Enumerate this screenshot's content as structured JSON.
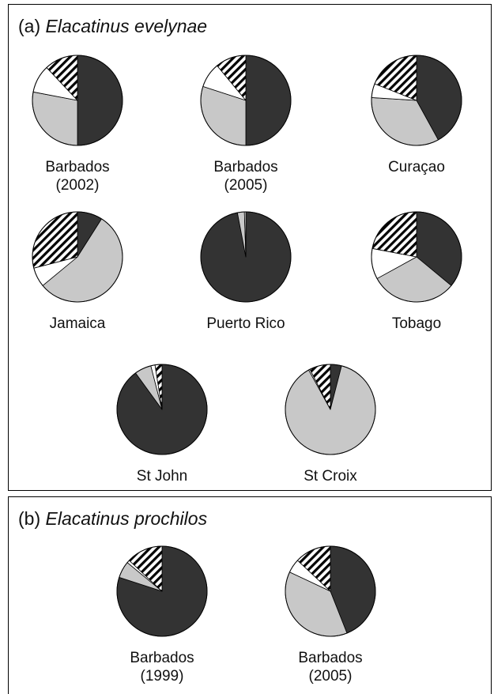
{
  "colors": {
    "dark": "#333333",
    "light_gray": "#c8c8c8",
    "white": "#ffffff",
    "hatched": "diagonal-stripes-black-white",
    "outline": "#000000"
  },
  "chart_data": [
    {
      "type": "pie",
      "panel_letter": "(a)",
      "title": "Elacatinus evelynae",
      "slice_order": [
        "dark",
        "light_gray",
        "white",
        "hatched"
      ],
      "pies": [
        {
          "label": [
            "Barbados",
            "(2002)"
          ],
          "values": [
            50,
            28,
            10,
            12
          ]
        },
        {
          "label": [
            "Barbados",
            "(2005)"
          ],
          "values": [
            50,
            30,
            9,
            11
          ]
        },
        {
          "label": [
            "Curaçao"
          ],
          "values": [
            42,
            34,
            5,
            19
          ]
        },
        {
          "label": [
            "Jamaica"
          ],
          "values": [
            9,
            55,
            7,
            29
          ]
        },
        {
          "label": [
            "Puerto Rico"
          ],
          "values": [
            97,
            2.5,
            0.5,
            0
          ]
        },
        {
          "label": [
            "Tobago"
          ],
          "values": [
            36,
            31,
            11,
            22
          ]
        },
        {
          "label": [
            "St John"
          ],
          "values": [
            90,
            6,
            1.5,
            2.5
          ]
        },
        {
          "label": [
            "St Croix"
          ],
          "values": [
            4,
            88,
            0.5,
            7.5
          ]
        }
      ]
    },
    {
      "type": "pie",
      "panel_letter": "(b)",
      "title": "Elacatinus prochilos",
      "slice_order": [
        "dark",
        "light_gray",
        "white",
        "hatched"
      ],
      "pies": [
        {
          "label": [
            "Barbados",
            "(1999)"
          ],
          "values": [
            80,
            6,
            1,
            13
          ]
        },
        {
          "label": [
            "Barbados",
            "(2005)"
          ],
          "values": [
            44,
            38,
            5,
            13
          ]
        }
      ]
    }
  ]
}
